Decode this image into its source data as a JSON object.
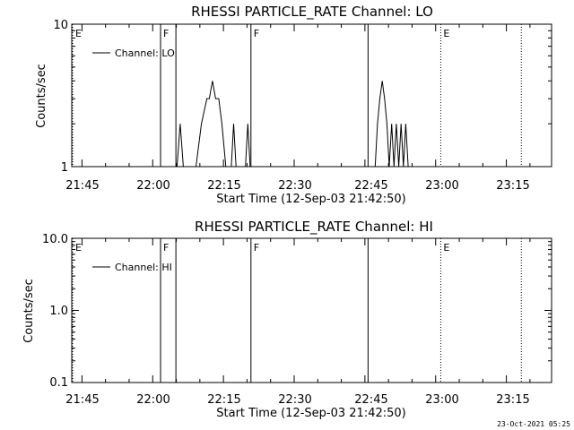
{
  "footer_timestamp": "23-Oct-2021 05:25",
  "chart_data": [
    {
      "type": "line",
      "title": "RHESSI PARTICLE_RATE Channel: LO",
      "xlabel": "Start Time (12-Sep-03 21:42:50)",
      "ylabel": "Counts/sec",
      "yscale": "log",
      "ylim": [
        1,
        10
      ],
      "xlim": [
        "21:42:50",
        "23:24:35"
      ],
      "x_tick_labels": [
        "21:45",
        "22:00",
        "22:15",
        "22:30",
        "22:45",
        "23:00",
        "23:15"
      ],
      "y_tick_labels": [
        "1",
        "10"
      ],
      "legend": {
        "entries": [
          "Channel: LO"
        ],
        "placement": "top-left"
      },
      "grid": false,
      "series": [
        {
          "name": "Channel: LO",
          "points": [
            [
              "22:05:10",
              1
            ],
            [
              "22:05:50",
              2
            ],
            [
              "22:06:30",
              1
            ],
            [
              "22:09:10",
              1
            ],
            [
              "22:10:20",
              2
            ],
            [
              "22:11:30",
              3
            ],
            [
              "22:12:00",
              3
            ],
            [
              "22:12:40",
              4
            ],
            [
              "22:13:20",
              3
            ],
            [
              "22:14:00",
              3
            ],
            [
              "22:14:40",
              2
            ],
            [
              "22:15:30",
              1
            ],
            [
              "22:16:40",
              1
            ],
            [
              "22:17:10",
              2
            ],
            [
              "22:17:40",
              1
            ],
            [
              "22:19:40",
              1
            ],
            [
              "22:20:10",
              2
            ],
            [
              "22:20:40",
              1
            ],
            [
              "22:47:10",
              1
            ],
            [
              "22:47:40",
              2
            ],
            [
              "22:48:10",
              3
            ],
            [
              "22:48:40",
              4
            ],
            [
              "22:49:10",
              3
            ],
            [
              "22:49:40",
              2
            ],
            [
              "22:50:10",
              1
            ],
            [
              "22:50:40",
              2
            ],
            [
              "22:51:10",
              1
            ],
            [
              "22:51:40",
              2
            ],
            [
              "22:52:10",
              1
            ],
            [
              "22:52:40",
              2
            ],
            [
              "22:53:10",
              1
            ],
            [
              "22:53:40",
              2
            ],
            [
              "22:54:10",
              1
            ]
          ]
        }
      ],
      "event_markers": [
        {
          "label": "E",
          "time": "21:42:50",
          "style": "dotted"
        },
        {
          "label": "F",
          "time": "22:01:40",
          "style": "dotted"
        },
        {
          "label": "",
          "time": "22:01:40",
          "style": "solid"
        },
        {
          "label": "",
          "time": "22:04:55",
          "style": "solid"
        },
        {
          "label": "F",
          "time": "22:20:50",
          "style": "solid"
        },
        {
          "label": "",
          "time": "22:45:40",
          "style": "solid"
        },
        {
          "label": "E",
          "time": "23:01:05",
          "style": "dotted"
        },
        {
          "label": "",
          "time": "23:18:10",
          "style": "dotted"
        }
      ]
    },
    {
      "type": "line",
      "title": "RHESSI PARTICLE_RATE Channel: HI",
      "xlabel": "Start Time (12-Sep-03 21:42:50)",
      "ylabel": "Counts/sec",
      "yscale": "log",
      "ylim": [
        0.1,
        10
      ],
      "xlim": [
        "21:42:50",
        "23:24:35"
      ],
      "x_tick_labels": [
        "21:45",
        "22:00",
        "22:15",
        "22:30",
        "22:45",
        "23:00",
        "23:15"
      ],
      "y_tick_labels": [
        "0.1",
        "1.0",
        "10.0"
      ],
      "legend": {
        "entries": [
          "Channel: HI"
        ],
        "placement": "top-left"
      },
      "grid": false,
      "series": [
        {
          "name": "Channel: HI",
          "points": []
        }
      ],
      "event_markers": [
        {
          "label": "E",
          "time": "21:42:50",
          "style": "dotted"
        },
        {
          "label": "F",
          "time": "22:01:40",
          "style": "dotted"
        },
        {
          "label": "",
          "time": "22:01:40",
          "style": "solid"
        },
        {
          "label": "",
          "time": "22:04:55",
          "style": "solid"
        },
        {
          "label": "F",
          "time": "22:20:50",
          "style": "solid"
        },
        {
          "label": "",
          "time": "22:45:40",
          "style": "solid"
        },
        {
          "label": "E",
          "time": "23:01:05",
          "style": "dotted"
        },
        {
          "label": "",
          "time": "23:18:10",
          "style": "dotted"
        }
      ]
    }
  ]
}
